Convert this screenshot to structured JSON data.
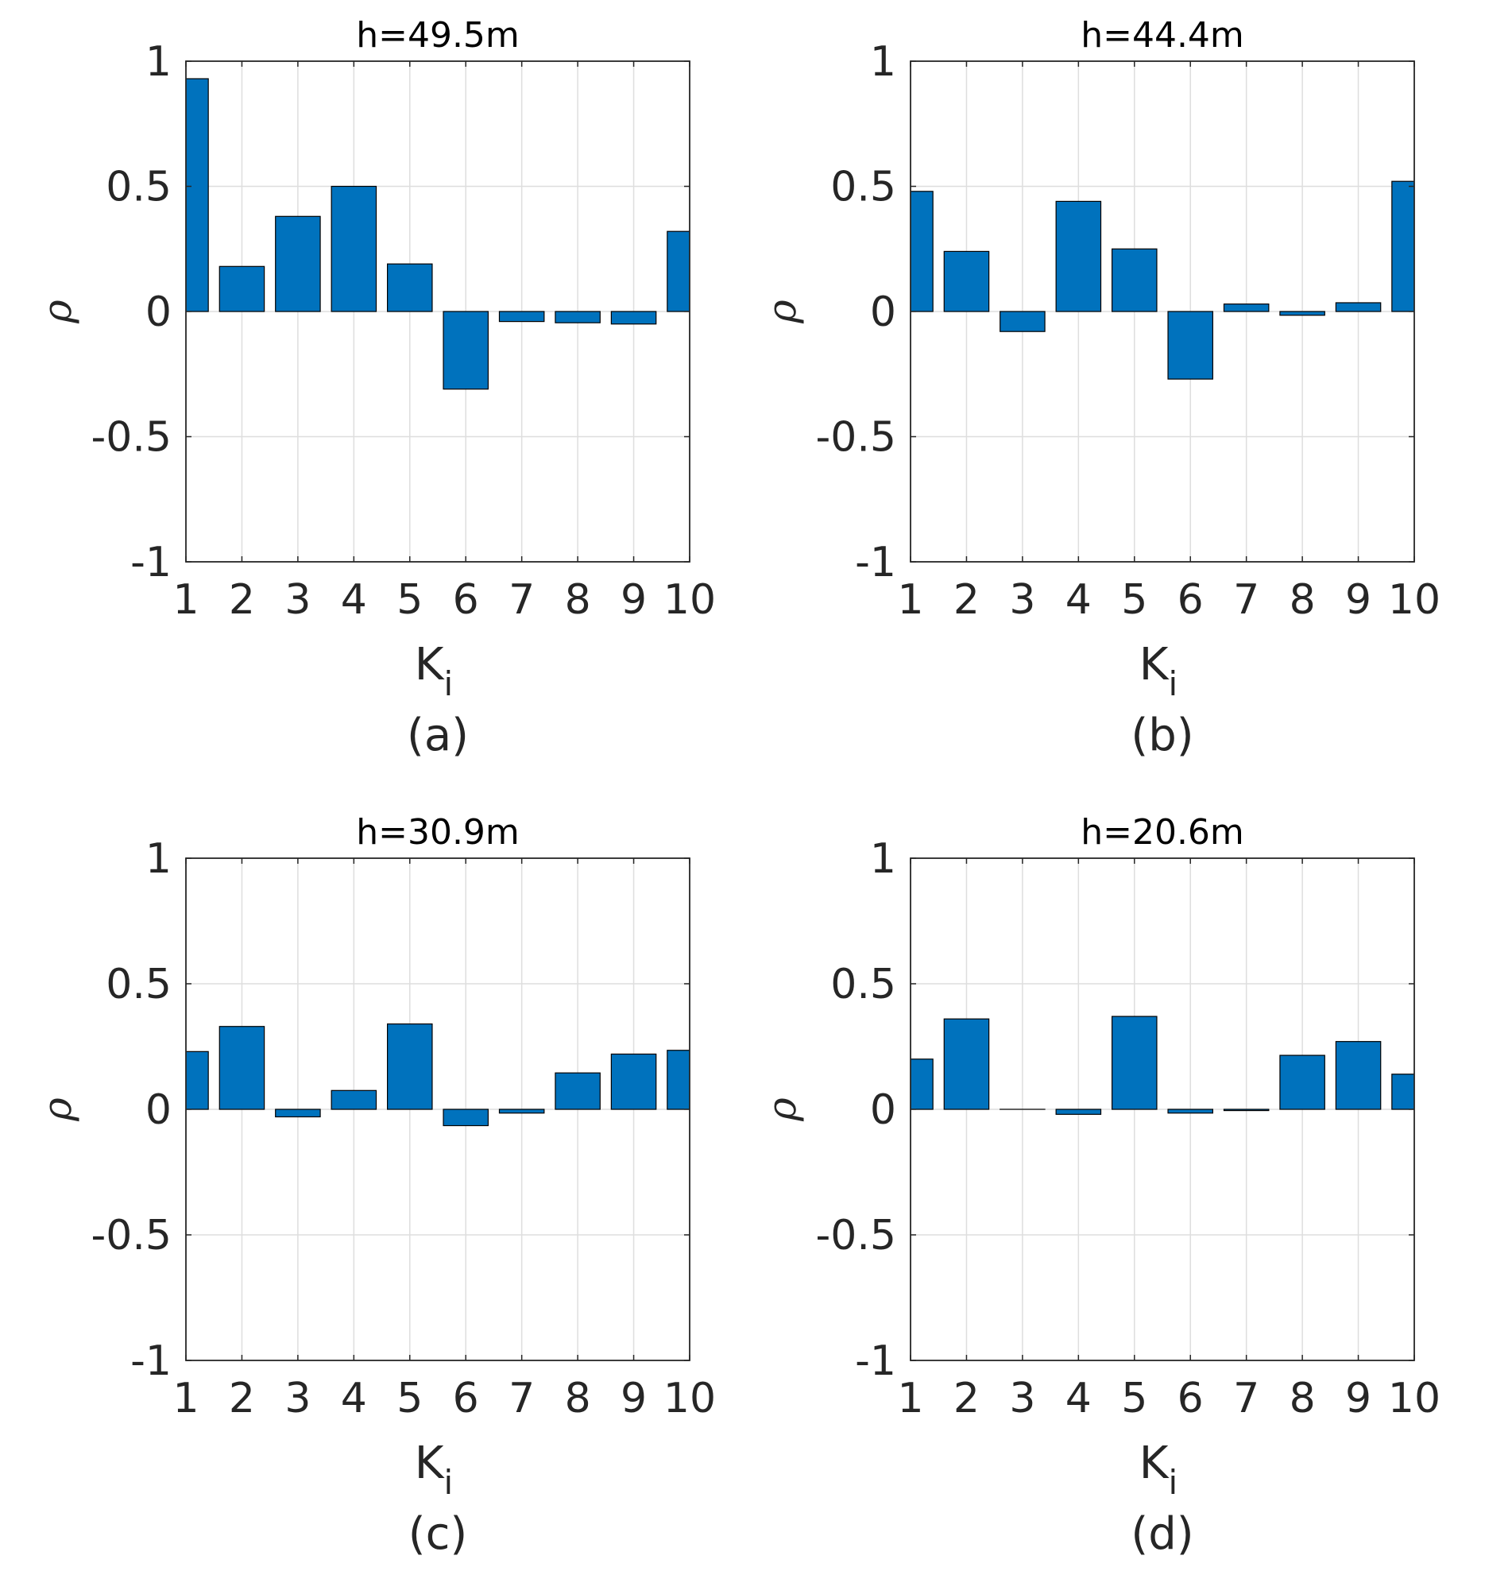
{
  "colors": {
    "bar": "#0072BD",
    "bar_edge": "#000000",
    "grid": "#dedede",
    "axis": "#262626"
  },
  "chart_data": [
    {
      "type": "bar",
      "title": "h=49.5m",
      "caption": "(a)",
      "xlabel": "K",
      "xlabel_sub": "i",
      "ylabel": "ρ",
      "categories": [
        "1",
        "2",
        "3",
        "4",
        "5",
        "6",
        "7",
        "8",
        "9",
        "10"
      ],
      "values": [
        0.93,
        0.18,
        0.38,
        0.5,
        0.19,
        -0.31,
        -0.04,
        -0.045,
        -0.05,
        0.32
      ],
      "ylim": [
        -1,
        1
      ],
      "yticks": [
        "-1",
        "-0.5",
        "0",
        "0.5",
        "1"
      ],
      "grid": true
    },
    {
      "type": "bar",
      "title": "h=44.4m",
      "caption": "(b)",
      "xlabel": "K",
      "xlabel_sub": "i",
      "ylabel": "ρ",
      "categories": [
        "1",
        "2",
        "3",
        "4",
        "5",
        "6",
        "7",
        "8",
        "9",
        "10"
      ],
      "values": [
        0.48,
        0.24,
        -0.08,
        0.44,
        0.25,
        -0.27,
        0.03,
        -0.015,
        0.035,
        0.52
      ],
      "ylim": [
        -1,
        1
      ],
      "yticks": [
        "-1",
        "-0.5",
        "0",
        "0.5",
        "1"
      ],
      "grid": true
    },
    {
      "type": "bar",
      "title": "h=30.9m",
      "caption": "(c)",
      "xlabel": "K",
      "xlabel_sub": "i",
      "ylabel": "ρ",
      "categories": [
        "1",
        "2",
        "3",
        "4",
        "5",
        "6",
        "7",
        "8",
        "9",
        "10"
      ],
      "values": [
        0.23,
        0.33,
        -0.03,
        0.075,
        0.34,
        -0.065,
        -0.015,
        0.145,
        0.22,
        0.235
      ],
      "ylim": [
        -1,
        1
      ],
      "yticks": [
        "-1",
        "-0.5",
        "0",
        "0.5",
        "1"
      ],
      "grid": true
    },
    {
      "type": "bar",
      "title": "h=20.6m",
      "caption": "(d)",
      "xlabel": "K",
      "xlabel_sub": "i",
      "ylabel": "ρ",
      "categories": [
        "1",
        "2",
        "3",
        "4",
        "5",
        "6",
        "7",
        "8",
        "9",
        "10"
      ],
      "values": [
        0.2,
        0.36,
        0.0,
        -0.02,
        0.37,
        -0.015,
        -0.005,
        0.215,
        0.27,
        0.14
      ],
      "ylim": [
        -1,
        1
      ],
      "yticks": [
        "-1",
        "-0.5",
        "0",
        "0.5",
        "1"
      ],
      "grid": true
    }
  ]
}
